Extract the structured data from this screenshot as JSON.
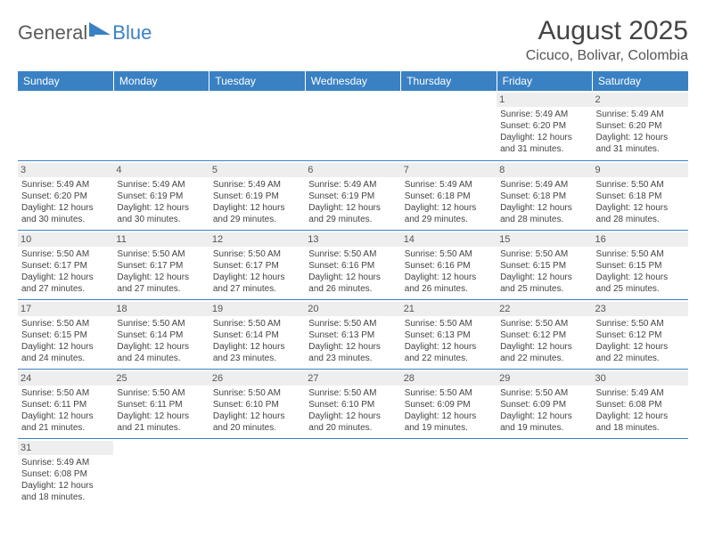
{
  "logo": {
    "text1": "General",
    "text2": "Blue",
    "icon_color": "#3a81c4"
  },
  "title": "August 2025",
  "location": "Cicuco, Bolivar, Colombia",
  "colors": {
    "header_bg": "#3a81c4",
    "header_text": "#ffffff",
    "daynum_bg": "#eeeeee",
    "border": "#3a81c4",
    "text": "#444444"
  },
  "day_headers": [
    "Sunday",
    "Monday",
    "Tuesday",
    "Wednesday",
    "Thursday",
    "Friday",
    "Saturday"
  ],
  "weeks": [
    [
      null,
      null,
      null,
      null,
      null,
      {
        "n": "1",
        "sr": "5:49 AM",
        "ss": "6:20 PM",
        "dl": "12 hours and 31 minutes."
      },
      {
        "n": "2",
        "sr": "5:49 AM",
        "ss": "6:20 PM",
        "dl": "12 hours and 31 minutes."
      }
    ],
    [
      {
        "n": "3",
        "sr": "5:49 AM",
        "ss": "6:20 PM",
        "dl": "12 hours and 30 minutes."
      },
      {
        "n": "4",
        "sr": "5:49 AM",
        "ss": "6:19 PM",
        "dl": "12 hours and 30 minutes."
      },
      {
        "n": "5",
        "sr": "5:49 AM",
        "ss": "6:19 PM",
        "dl": "12 hours and 29 minutes."
      },
      {
        "n": "6",
        "sr": "5:49 AM",
        "ss": "6:19 PM",
        "dl": "12 hours and 29 minutes."
      },
      {
        "n": "7",
        "sr": "5:49 AM",
        "ss": "6:18 PM",
        "dl": "12 hours and 29 minutes."
      },
      {
        "n": "8",
        "sr": "5:49 AM",
        "ss": "6:18 PM",
        "dl": "12 hours and 28 minutes."
      },
      {
        "n": "9",
        "sr": "5:50 AM",
        "ss": "6:18 PM",
        "dl": "12 hours and 28 minutes."
      }
    ],
    [
      {
        "n": "10",
        "sr": "5:50 AM",
        "ss": "6:17 PM",
        "dl": "12 hours and 27 minutes."
      },
      {
        "n": "11",
        "sr": "5:50 AM",
        "ss": "6:17 PM",
        "dl": "12 hours and 27 minutes."
      },
      {
        "n": "12",
        "sr": "5:50 AM",
        "ss": "6:17 PM",
        "dl": "12 hours and 27 minutes."
      },
      {
        "n": "13",
        "sr": "5:50 AM",
        "ss": "6:16 PM",
        "dl": "12 hours and 26 minutes."
      },
      {
        "n": "14",
        "sr": "5:50 AM",
        "ss": "6:16 PM",
        "dl": "12 hours and 26 minutes."
      },
      {
        "n": "15",
        "sr": "5:50 AM",
        "ss": "6:15 PM",
        "dl": "12 hours and 25 minutes."
      },
      {
        "n": "16",
        "sr": "5:50 AM",
        "ss": "6:15 PM",
        "dl": "12 hours and 25 minutes."
      }
    ],
    [
      {
        "n": "17",
        "sr": "5:50 AM",
        "ss": "6:15 PM",
        "dl": "12 hours and 24 minutes."
      },
      {
        "n": "18",
        "sr": "5:50 AM",
        "ss": "6:14 PM",
        "dl": "12 hours and 24 minutes."
      },
      {
        "n": "19",
        "sr": "5:50 AM",
        "ss": "6:14 PM",
        "dl": "12 hours and 23 minutes."
      },
      {
        "n": "20",
        "sr": "5:50 AM",
        "ss": "6:13 PM",
        "dl": "12 hours and 23 minutes."
      },
      {
        "n": "21",
        "sr": "5:50 AM",
        "ss": "6:13 PM",
        "dl": "12 hours and 22 minutes."
      },
      {
        "n": "22",
        "sr": "5:50 AM",
        "ss": "6:12 PM",
        "dl": "12 hours and 22 minutes."
      },
      {
        "n": "23",
        "sr": "5:50 AM",
        "ss": "6:12 PM",
        "dl": "12 hours and 22 minutes."
      }
    ],
    [
      {
        "n": "24",
        "sr": "5:50 AM",
        "ss": "6:11 PM",
        "dl": "12 hours and 21 minutes."
      },
      {
        "n": "25",
        "sr": "5:50 AM",
        "ss": "6:11 PM",
        "dl": "12 hours and 21 minutes."
      },
      {
        "n": "26",
        "sr": "5:50 AM",
        "ss": "6:10 PM",
        "dl": "12 hours and 20 minutes."
      },
      {
        "n": "27",
        "sr": "5:50 AM",
        "ss": "6:10 PM",
        "dl": "12 hours and 20 minutes."
      },
      {
        "n": "28",
        "sr": "5:50 AM",
        "ss": "6:09 PM",
        "dl": "12 hours and 19 minutes."
      },
      {
        "n": "29",
        "sr": "5:50 AM",
        "ss": "6:09 PM",
        "dl": "12 hours and 19 minutes."
      },
      {
        "n": "30",
        "sr": "5:49 AM",
        "ss": "6:08 PM",
        "dl": "12 hours and 18 minutes."
      }
    ],
    [
      {
        "n": "31",
        "sr": "5:49 AM",
        "ss": "6:08 PM",
        "dl": "12 hours and 18 minutes."
      },
      null,
      null,
      null,
      null,
      null,
      null
    ]
  ],
  "labels": {
    "sunrise": "Sunrise:",
    "sunset": "Sunset:",
    "daylight": "Daylight:"
  }
}
